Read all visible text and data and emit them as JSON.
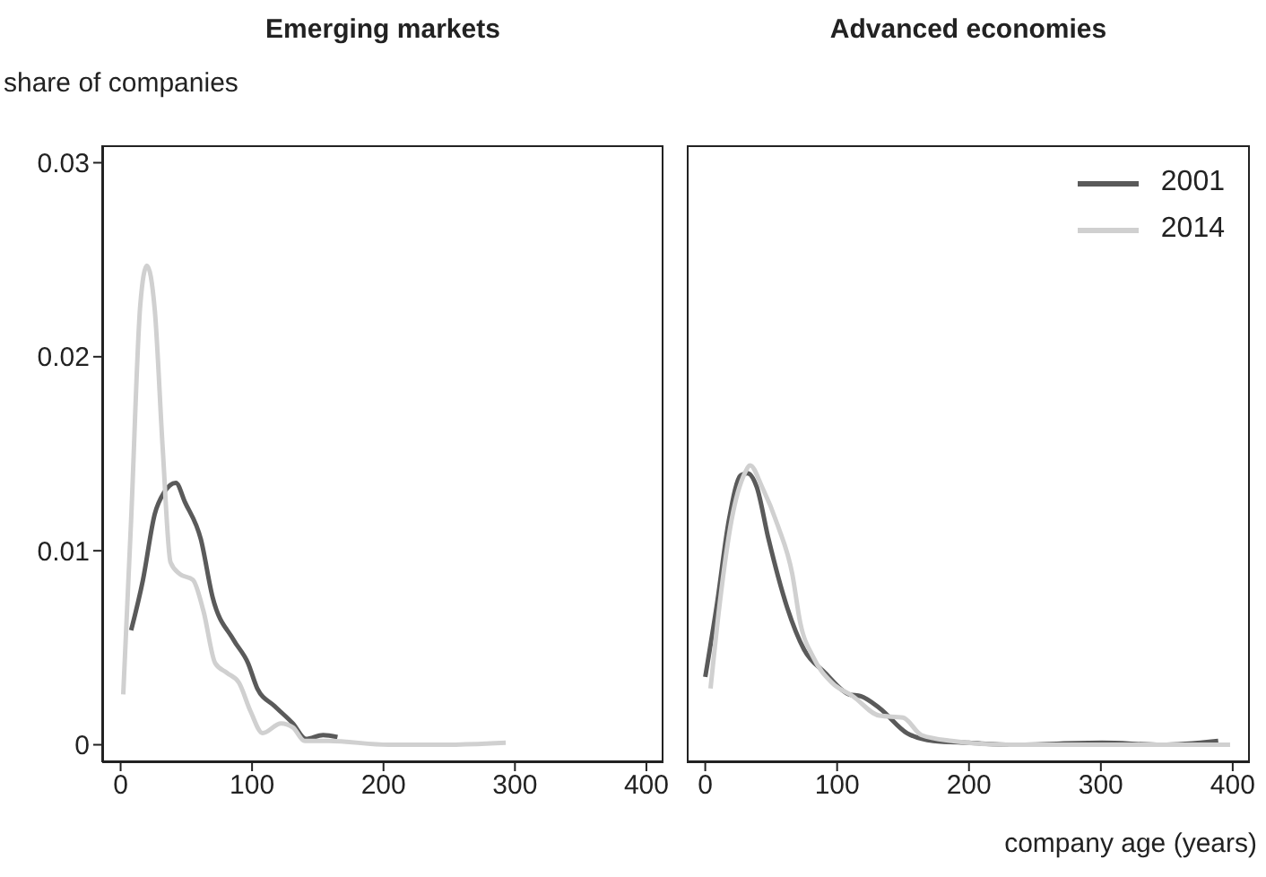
{
  "chart_data": [
    {
      "type": "line",
      "title": "Emerging markets",
      "ylabel": "share of companies",
      "xlim": [
        -14,
        413
      ],
      "xticks": [
        0,
        100,
        200,
        300,
        400
      ],
      "ylim": [
        -0.0009,
        0.0309
      ],
      "yticks": [
        0,
        0.01,
        0.02,
        0.03
      ],
      "grid": false,
      "legend": false,
      "marker": "none",
      "line_style": "solid",
      "series": [
        {
          "color": "#5a5a5a",
          "x": [
            8,
            17,
            26,
            33,
            42,
            49,
            61,
            70,
            86,
            97,
            104,
            117,
            131,
            141,
            154,
            165
          ],
          "values": [
            0.0059,
            0.0085,
            0.0119,
            0.013,
            0.0135,
            0.0125,
            0.0106,
            0.0076,
            0.0054,
            0.0042,
            0.0029,
            0.002,
            0.0011,
            0.0003,
            0.0005,
            0.0004
          ]
        },
        {
          "color": "#d0d0d0",
          "x": [
            2,
            8,
            15,
            20,
            26,
            32,
            38,
            45,
            55,
            63,
            72,
            81,
            90,
            99,
            108,
            122,
            131,
            140,
            158,
            204,
            249,
            293
          ],
          "values": [
            0.0026,
            0.0116,
            0.0227,
            0.0247,
            0.0224,
            0.0153,
            0.0094,
            0.0088,
            0.0085,
            0.0069,
            0.0042,
            0.0037,
            0.0032,
            0.0017,
            0.0006,
            0.0011,
            0.0009,
            0.0002,
            0.0002,
            0,
            0,
            0.0001
          ]
        }
      ]
    },
    {
      "type": "line",
      "title": "Advanced economies",
      "xlabel": "company age (years)",
      "xlim": [
        -14,
        413
      ],
      "xticks": [
        0,
        100,
        200,
        300,
        400
      ],
      "ylim": [
        -0.0009,
        0.0309
      ],
      "tick_labels": "x",
      "grid": false,
      "legend": "top right",
      "marker": "none",
      "line_style": "solid",
      "series": [
        {
          "name": "2001",
          "color": "#5a5a5a",
          "x": [
            0,
            9,
            18,
            27,
            32,
            39,
            48,
            62,
            75,
            91,
            109,
            118,
            132,
            153,
            173,
            200,
            232,
            301,
            346,
            389
          ],
          "values": [
            0.0035,
            0.0073,
            0.0116,
            0.0139,
            0.014,
            0.0133,
            0.0106,
            0.0071,
            0.0049,
            0.0037,
            0.0026,
            0.0025,
            0.0019,
            0.0006,
            0.0002,
            0.0001,
            0,
            0.0001,
            0,
            0.0002
          ]
        },
        {
          "name": "2014",
          "color": "#d0d0d0",
          "x": [
            4,
            11,
            20,
            30,
            34,
            43,
            55,
            66,
            72,
            82,
            96,
            112,
            132,
            150,
            164,
            187,
            232,
            301,
            398
          ],
          "values": [
            0.0029,
            0.0073,
            0.0116,
            0.014,
            0.0144,
            0.0133,
            0.0113,
            0.0088,
            0.0063,
            0.0045,
            0.0032,
            0.0025,
            0.0015,
            0.0014,
            0.0005,
            0.0002,
            0,
            0,
            0
          ]
        }
      ]
    }
  ]
}
